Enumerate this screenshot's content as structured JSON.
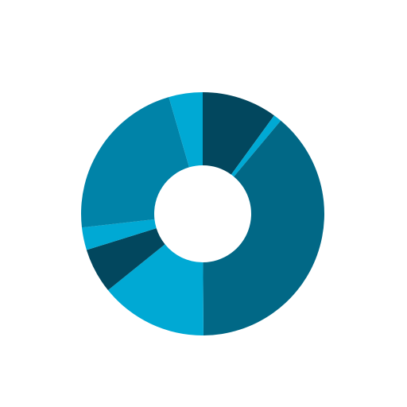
{
  "chart_data": {
    "type": "pie",
    "variant": "donut",
    "title": "",
    "slices": [
      {
        "value": 10.0,
        "color": "#02475e"
      },
      {
        "value": 1.1,
        "color": "#00a9d4"
      },
      {
        "value": 38.8,
        "color": "#016886"
      },
      {
        "value": 14.3,
        "color": "#00a9d4"
      },
      {
        "value": 6.0,
        "color": "#02475e"
      },
      {
        "value": 3.0,
        "color": "#00a9d4"
      },
      {
        "value": 22.3,
        "color": "#0083a8"
      },
      {
        "value": 4.5,
        "color": "#00a9d4"
      }
    ],
    "legend": "none"
  }
}
